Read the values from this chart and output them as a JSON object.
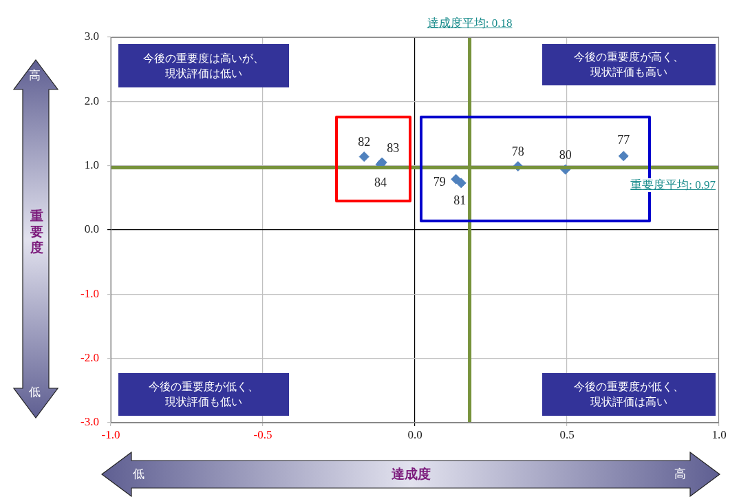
{
  "chart_data": {
    "type": "scatter",
    "xlabel": "達成度",
    "ylabel": "重要度",
    "x": [
      0.686,
      0.339,
      0.135,
      0.495,
      0.152,
      -0.167,
      -0.108,
      -0.113
    ],
    "series": [
      {
        "color": "#4f81bd",
        "values": [
          1.15,
          0.99,
          0.79,
          0.94,
          0.73,
          1.14,
          1.05,
          1.02
        ]
      }
    ],
    "marker": "diamond",
    "xlim": [
      -1.0,
      1.0
    ],
    "xticks": [
      {
        "value": -1.0,
        "label": "-1.0"
      },
      {
        "value": -0.5,
        "label": "-0.5"
      },
      {
        "value": 0,
        "label": "0.0"
      },
      {
        "value": 0.5,
        "label": "0.5"
      },
      {
        "value": 1.0,
        "label": "1.0"
      }
    ],
    "ylim": [
      -3.0,
      3.0
    ],
    "yticks": [
      {
        "value": -3.0,
        "label": "-3.0"
      },
      {
        "value": -2.0,
        "label": "-2.0"
      },
      {
        "value": -1.0,
        "label": "-1.0"
      },
      {
        "value": 0,
        "label": "0.0"
      },
      {
        "value": 1.0,
        "label": "1.0"
      },
      {
        "value": 2.0,
        "label": "2.0"
      },
      {
        "value": 3.0,
        "label": "3.0"
      }
    ],
    "grid": true,
    "ref_lines": [
      {
        "axis": "x",
        "value": 0.18,
        "label": "達成度平均: 0.18",
        "color": "#77933c"
      },
      {
        "axis": "y",
        "value": 0.97,
        "label": "重要度平均: 0.97",
        "color": "#77933c"
      }
    ],
    "annotations": [
      {
        "text": "77",
        "x": 0.686,
        "y": 1.15
      },
      {
        "text": "78",
        "x": 0.339,
        "y": 0.99
      },
      {
        "text": "79",
        "x": 0.135,
        "y": 0.79
      },
      {
        "text": "80",
        "x": 0.495,
        "y": 0.94
      },
      {
        "text": "81",
        "x": 0.152,
        "y": 0.73
      },
      {
        "text": "82",
        "x": -0.167,
        "y": 1.14
      },
      {
        "text": "83",
        "x": -0.108,
        "y": 1.05
      },
      {
        "text": "84",
        "x": -0.113,
        "y": 1.02
      },
      "今後の重要度は高いが、現状評価は低い",
      "今後の重要度が高く、現状評価も高い",
      "今後の重要度が低く、現状評価も低い",
      "今後の重要度が低く、現状評価は高い",
      "高",
      "低",
      "低",
      "高"
    ]
  }
}
